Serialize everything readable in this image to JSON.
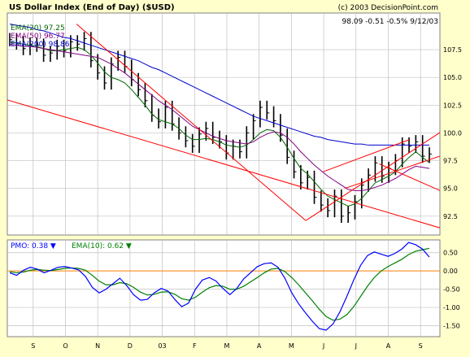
{
  "header": {
    "title": "US Dollar Index (End of Day) ($USD)",
    "copyright": "(c) 2003 DecisionPoint.com",
    "quote": "98.09 -0.51 -0.5% 9/12/03"
  },
  "legend": {
    "ema20": "EMA(20) 97.25",
    "ema50": "EMA(50) 96.77",
    "ema200": "EMA(200) 98.86",
    "pmo": "PMO: 0.38 ▼",
    "pmo_signal": "EMA(10): 0.62 ▼"
  },
  "colors": {
    "background": "#ffffcc",
    "plot_background": "#ffffff",
    "grid": "#c0c0c0",
    "price": "#000000",
    "ema20": "#006600",
    "ema50": "#800080",
    "ema200": "#0000cc",
    "trendline": "#ff0000",
    "pmo": "#0000ff",
    "pmo_signal": "#008000",
    "zero_line": "#ff8000"
  },
  "chart_data": [
    {
      "type": "line",
      "title": "US Dollar Index (End of Day) ($USD)",
      "xlabel": "",
      "ylabel": "",
      "x_ticks": [
        "S",
        "O",
        "N",
        "D",
        "03",
        "F",
        "M",
        "A",
        "M",
        "J",
        "J",
        "A",
        "S"
      ],
      "y_ticks": [
        92.5,
        95.0,
        97.5,
        100.0,
        102.5,
        105.0,
        107.5
      ],
      "ylim": [
        90.8,
        110.8
      ],
      "grid": true,
      "legend_position": "top-left",
      "price_bars": [
        108.4,
        108.1,
        107.6,
        108.0,
        107.9,
        107.0,
        107.2,
        107.8,
        107.4,
        108.2,
        108.0,
        108.5,
        106.5,
        105.4,
        104.5,
        106.2,
        106.8,
        106.0,
        104.8,
        103.9,
        102.9,
        101.6,
        101.0,
        102.3,
        100.8,
        100.0,
        99.3,
        98.8,
        99.9,
        100.4,
        99.6,
        99.2,
        98.2,
        98.8,
        98.3,
        100.0,
        101.1,
        102.3,
        101.8,
        101.1,
        99.8,
        97.8,
        96.5,
        95.5,
        96.0,
        94.2,
        93.5,
        93.0,
        94.3,
        92.5,
        92.8,
        93.8,
        95.3,
        96.2,
        97.3,
        96.1,
        96.8,
        97.5,
        99.0,
        98.8,
        99.2,
        97.9,
        98.1
      ],
      "series": [
        {
          "name": "EMA(20)",
          "values": [
            108.2,
            108.1,
            108.0,
            107.9,
            107.8,
            107.6,
            107.4,
            107.4,
            107.5,
            107.6,
            107.7,
            107.5,
            107.0,
            106.3,
            105.5,
            105.0,
            104.8,
            104.5,
            103.9,
            103.2,
            102.5,
            101.7,
            101.2,
            101.0,
            100.8,
            100.4,
            99.8,
            99.4,
            99.4,
            99.5,
            99.4,
            99.2,
            98.9,
            98.8,
            98.7,
            98.9,
            99.4,
            100.0,
            100.3,
            100.2,
            99.6,
            98.7,
            97.7,
            96.8,
            96.3,
            95.6,
            94.9,
            94.3,
            94.0,
            93.7,
            93.4,
            93.6,
            94.1,
            94.8,
            95.5,
            95.8,
            96.1,
            96.5,
            97.2,
            97.8,
            98.3,
            97.8,
            97.3
          ]
        },
        {
          "name": "EMA(50)",
          "values": [
            108.0,
            107.9,
            107.8,
            107.8,
            107.7,
            107.6,
            107.5,
            107.4,
            107.3,
            107.2,
            107.1,
            107.0,
            106.9,
            106.8,
            106.5,
            106.2,
            105.8,
            105.4,
            104.9,
            104.4,
            103.9,
            103.4,
            102.9,
            102.5,
            102.1,
            101.6,
            101.1,
            100.6,
            100.3,
            100.0,
            99.7,
            99.5,
            99.3,
            99.2,
            99.1,
            99.0,
            99.2,
            99.6,
            99.9,
            100.1,
            100.0,
            99.6,
            99.0,
            98.3,
            97.7,
            97.1,
            96.6,
            96.1,
            95.7,
            95.3,
            94.9,
            94.8,
            94.8,
            94.9,
            95.1,
            95.3,
            95.6,
            95.9,
            96.3,
            96.7,
            97.0,
            96.9,
            96.8
          ]
        },
        {
          "name": "EMA(200)",
          "values": [
            109.8,
            109.7,
            109.6,
            109.5,
            109.3,
            109.2,
            109.0,
            108.8,
            108.6,
            108.5,
            108.3,
            108.1,
            107.9,
            107.7,
            107.5,
            107.3,
            107.1,
            106.9,
            106.7,
            106.5,
            106.2,
            105.9,
            105.7,
            105.4,
            105.1,
            104.8,
            104.5,
            104.2,
            103.9,
            103.6,
            103.3,
            103.0,
            102.7,
            102.4,
            102.1,
            101.8,
            101.5,
            101.3,
            101.1,
            100.9,
            100.7,
            100.5,
            100.3,
            100.1,
            99.9,
            99.7,
            99.6,
            99.4,
            99.3,
            99.2,
            99.1,
            99.0,
            99.0,
            98.9,
            98.9,
            98.9,
            98.9,
            98.9,
            98.9,
            98.9,
            98.9,
            98.9,
            98.9
          ]
        }
      ],
      "trendlines": [
        {
          "x": [
            0.16,
            0.69
          ],
          "y": [
            109.8,
            92.1
          ]
        },
        {
          "x": [
            -0.02,
            1.03
          ],
          "y": [
            103.2,
            91.1
          ]
        },
        {
          "x": [
            0.69,
            1.03
          ],
          "y": [
            92.1,
            100.8
          ]
        },
        {
          "x": [
            0.73,
            0.93
          ],
          "y": [
            96.5,
            99.4
          ]
        },
        {
          "x": [
            0.78,
            1.03
          ],
          "y": [
            95.0,
            98.3
          ]
        },
        {
          "x": [
            0.86,
            1.03
          ],
          "y": [
            97.2,
            94.3
          ]
        }
      ]
    },
    {
      "type": "line",
      "title": "",
      "xlabel": "",
      "ylabel": "",
      "y_ticks": [
        -1.5,
        -1.0,
        -0.5,
        0.0,
        0.5
      ],
      "ylim": [
        -1.8,
        0.85
      ],
      "zero_line": 0.0,
      "grid": true,
      "legend_position": "top-left",
      "series": [
        {
          "name": "PMO",
          "values": [
            -0.05,
            -0.12,
            0.02,
            0.1,
            0.05,
            -0.05,
            0.02,
            0.1,
            0.12,
            0.08,
            0.03,
            -0.15,
            -0.45,
            -0.6,
            -0.5,
            -0.35,
            -0.2,
            -0.4,
            -0.65,
            -0.8,
            -0.78,
            -0.6,
            -0.48,
            -0.55,
            -0.78,
            -0.98,
            -0.88,
            -0.5,
            -0.25,
            -0.18,
            -0.28,
            -0.48,
            -0.65,
            -0.48,
            -0.22,
            -0.05,
            0.12,
            0.2,
            0.22,
            0.1,
            -0.2,
            -0.6,
            -0.9,
            -1.15,
            -1.38,
            -1.58,
            -1.62,
            -1.45,
            -1.12,
            -0.7,
            -0.25,
            0.15,
            0.42,
            0.52,
            0.46,
            0.4,
            0.48,
            0.6,
            0.78,
            0.72,
            0.6,
            0.38
          ]
        },
        {
          "name": "EMA(10)",
          "values": [
            -0.02,
            -0.05,
            -0.03,
            0.02,
            0.04,
            0.02,
            0.01,
            0.04,
            0.07,
            0.08,
            0.07,
            0.02,
            -0.12,
            -0.28,
            -0.38,
            -0.38,
            -0.32,
            -0.35,
            -0.45,
            -0.58,
            -0.66,
            -0.64,
            -0.58,
            -0.57,
            -0.64,
            -0.76,
            -0.8,
            -0.72,
            -0.58,
            -0.46,
            -0.4,
            -0.42,
            -0.5,
            -0.5,
            -0.42,
            -0.3,
            -0.18,
            -0.05,
            0.05,
            0.07,
            -0.02,
            -0.18,
            -0.38,
            -0.6,
            -0.82,
            -1.05,
            -1.25,
            -1.35,
            -1.32,
            -1.2,
            -0.98,
            -0.7,
            -0.42,
            -0.18,
            0.0,
            0.12,
            0.22,
            0.32,
            0.45,
            0.54,
            0.58,
            0.62
          ]
        }
      ]
    }
  ]
}
